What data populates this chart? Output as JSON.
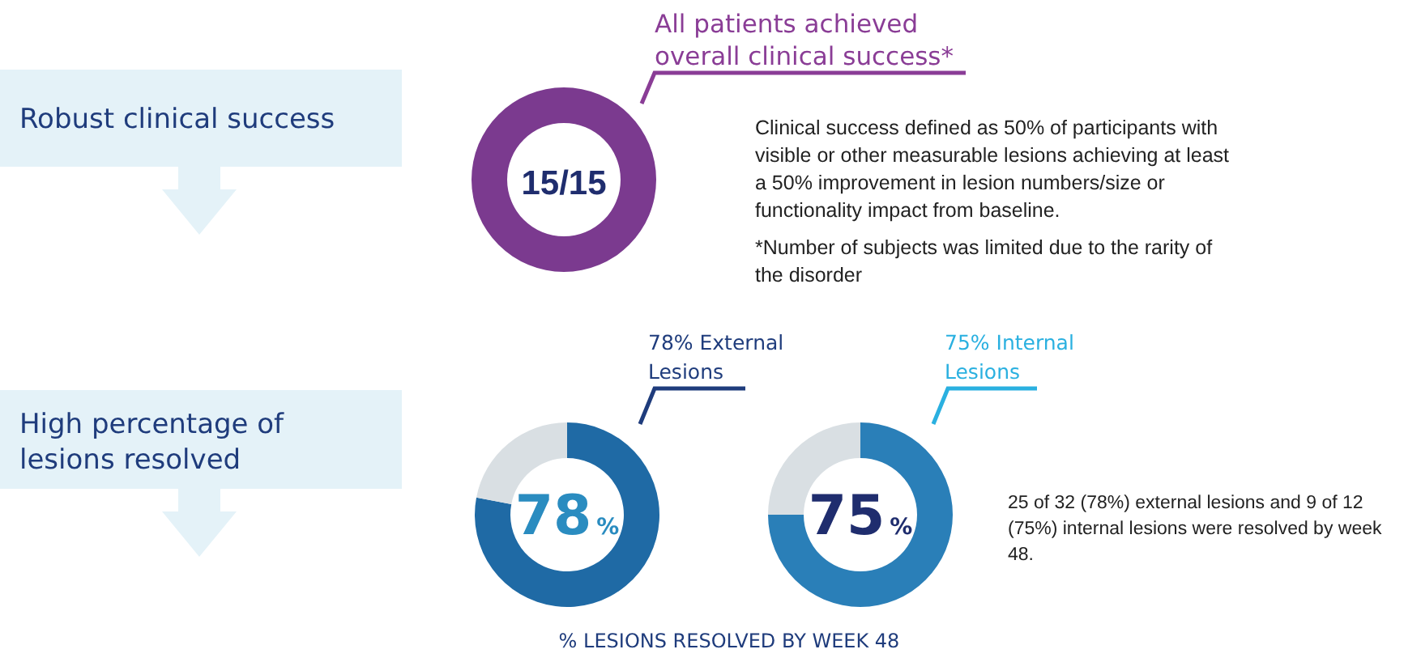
{
  "chart_data": [
    {
      "type": "donut",
      "title": "All patients achieved overall clinical success*",
      "categories": [
        null
      ],
      "values": [
        15
      ],
      "colors": [
        "#7b3a8f"
      ],
      "value_labels": [
        "15/15"
      ],
      "annotations": [
        "Robust clinical success",
        "Clinical success defined as 50% of participants with visible or other measurable lesions achieving at least a 50% improvement in lesion numbers/size or functionality impact from baseline.",
        "*Number of subjects was limited due to the rarity of the disorder"
      ]
    },
    {
      "type": "donut",
      "title": "78% External Lesions",
      "categories": [
        null,
        null
      ],
      "values": [
        78,
        22
      ],
      "colors": [
        "#1f6aa5",
        "#d9dfe3"
      ],
      "value_labels": [
        "78%",
        null
      ],
      "annotations": [
        "High percentage of lesions resolved",
        "% LESIONS RESOLVED BY WEEK 48"
      ]
    },
    {
      "type": "donut",
      "title": "75% Internal Lesions",
      "categories": [
        null,
        null
      ],
      "values": [
        75,
        25
      ],
      "colors": [
        "#2a7fb8",
        "#d9dfe3"
      ],
      "value_labels": [
        "75%",
        null
      ],
      "annotations": [
        "25 of 32 (78%) external lesions and 9 of 12 (75%) internal lesions were resolved by week 48."
      ]
    }
  ]
}
